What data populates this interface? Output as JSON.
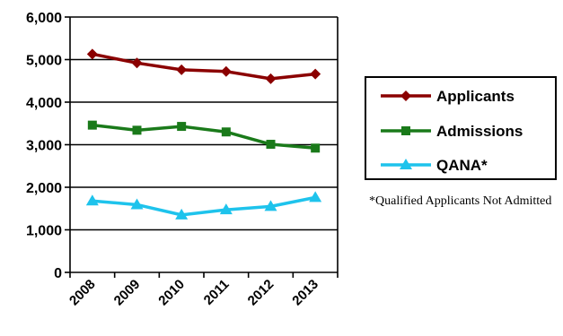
{
  "chart_data": {
    "type": "line",
    "categories": [
      "2008",
      "2009",
      "2010",
      "2011",
      "2012",
      "2013"
    ],
    "ylim": [
      0,
      6000
    ],
    "yticks": [
      "0",
      "1,000",
      "2,000",
      "3,000",
      "4,000",
      "5,000",
      "6,000"
    ],
    "grid": true,
    "legend_position": "right",
    "series": [
      {
        "name": "Applicants",
        "color": "#8b0000",
        "marker": "diamond",
        "values": [
          5130,
          4920,
          4760,
          4720,
          4550,
          4660
        ]
      },
      {
        "name": "Admissions",
        "color": "#1a7a1a",
        "marker": "square",
        "values": [
          3460,
          3340,
          3430,
          3300,
          3010,
          2920
        ]
      },
      {
        "name": "QANA*",
        "color": "#1ec3ec",
        "marker": "triangle",
        "values": [
          1680,
          1590,
          1350,
          1470,
          1550,
          1760
        ]
      }
    ],
    "footnote": "*Qualified Applicants Not Admitted"
  }
}
